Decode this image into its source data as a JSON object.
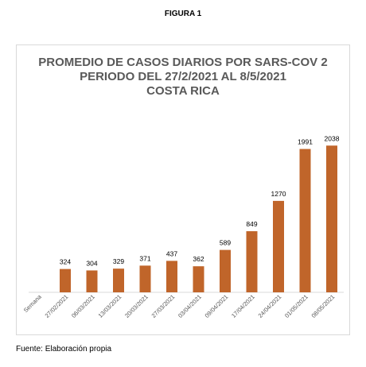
{
  "figure_label": "FIGURA 1",
  "source_note": "Fuente: Elaboración propia",
  "colors": {
    "bar": "#c0652a",
    "axis": "#d9d9d9",
    "text": "#595959"
  },
  "chart_data": {
    "type": "bar",
    "title_lines": [
      "PROMEDIO DE CASOS DIARIOS POR SARS-COV 2",
      "PERIODO DEL 27/2/2021 AL 8/5/2021",
      "COSTA RICA"
    ],
    "xlabel": "Semana",
    "ylabel": "",
    "categories": [
      "27/02/2021",
      "06/03/2021",
      "13/03/2021",
      "20/03/2021",
      "27/03/2021",
      "03/04/2021",
      "09/04/2021",
      "17/04/2021",
      "24/04/2021",
      "01/05/2021",
      "08/05/2021"
    ],
    "values": [
      324,
      304,
      329,
      371,
      437,
      362,
      589,
      849,
      1270,
      1991,
      2038
    ],
    "ylim": [
      0,
      2350
    ],
    "grid": false,
    "legend": "none",
    "data_labels": true
  }
}
